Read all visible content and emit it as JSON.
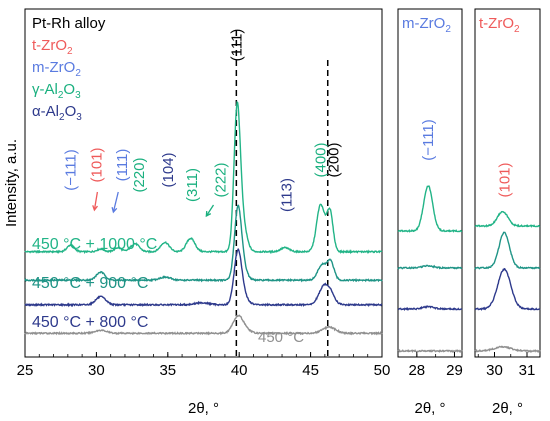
{
  "chart_data": {
    "type": "line",
    "title": "",
    "panels": [
      {
        "id": "main",
        "xlabel": "2θ, °",
        "ylabel": "Intensity, a.u.",
        "xlim": [
          25,
          50
        ],
        "xticks": [
          25,
          30,
          35,
          40,
          45,
          50
        ],
        "xtick_labels": [
          "25",
          "30",
          "35",
          "40",
          "45",
          "50"
        ],
        "legend": [
          {
            "label": "Pt-Rh alloy",
            "color": "#000000",
            "sub": ""
          },
          {
            "label": "t-ZrO",
            "color": "#ef5a5a",
            "sub": "2"
          },
          {
            "label": "m-ZrO",
            "color": "#5a7be0",
            "sub": "2"
          },
          {
            "label": "γ-Al",
            "color": "#1ab07f",
            "sub": "2",
            "tail": "O",
            "tailsub": "3"
          },
          {
            "label": "α-Al",
            "color": "#2e3a8c",
            "sub": "2",
            "tail": "O",
            "tailsub": "3"
          }
        ],
        "series": [
          {
            "name": "450 °C + 1000 °C",
            "color": "#22b487",
            "label": "450 °C + 1000 °C",
            "baseline": 0.78,
            "peaks": [
              [
                28.2,
                0.05,
                0.25
              ],
              [
                30.3,
                0.02,
                0.25
              ],
              [
                31.5,
                0.03,
                0.25
              ],
              [
                32.7,
                0.06,
                0.3
              ],
              [
                34.8,
                0.07,
                0.3
              ],
              [
                36.6,
                0.1,
                0.3
              ],
              [
                39.85,
                1.0,
                0.22
              ],
              [
                40.2,
                0.22,
                0.3
              ],
              [
                43.2,
                0.03,
                0.3
              ],
              [
                45.7,
                0.35,
                0.28
              ],
              [
                46.35,
                0.3,
                0.22
              ]
            ]
          },
          {
            "name": "450 °C + 900 °C",
            "color": "#1f9486",
            "label": "450 °C + 900 °C",
            "baseline": 0.56,
            "peaks": [
              [
                30.3,
                0.08,
                0.3
              ],
              [
                34.8,
                0.03,
                0.4
              ],
              [
                39.9,
                0.65,
                0.24
              ],
              [
                40.2,
                0.15,
                0.3
              ],
              [
                45.8,
                0.15,
                0.3
              ],
              [
                46.4,
                0.18,
                0.24
              ]
            ]
          },
          {
            "name": "450 °C + 800 °C",
            "color": "#2e3a8c",
            "label": "450 °C + 800 °C",
            "baseline": 0.37,
            "peaks": [
              [
                30.3,
                0.08,
                0.35
              ],
              [
                37.4,
                0.02,
                0.5
              ],
              [
                39.9,
                0.48,
                0.26
              ],
              [
                40.2,
                0.1,
                0.35
              ],
              [
                45.9,
                0.17,
                0.34
              ],
              [
                46.4,
                0.1,
                0.3
              ]
            ]
          },
          {
            "name": "450 °C",
            "color": "#909090",
            "label": "450 °C",
            "baseline": 0.15,
            "peaks": [
              [
                30.3,
                0.03,
                0.4
              ],
              [
                39.9,
                0.15,
                0.35
              ],
              [
                40.3,
                0.04,
                0.4
              ],
              [
                46.3,
                0.06,
                0.45
              ]
            ]
          }
        ],
        "reference_lines": [
          39.8,
          46.2
        ],
        "annotations": [
          {
            "text": "(−111)",
            "x": 28.2,
            "color": "#5a7be0"
          },
          {
            "text": "(101)",
            "x": 30.0,
            "color": "#ef5a5a"
          },
          {
            "text": "(111)",
            "x": 31.8,
            "color": "#5a7be0"
          },
          {
            "text": "(220)",
            "x": 33.0,
            "color": "#1ab07f"
          },
          {
            "text": "(104)",
            "x": 35.0,
            "color": "#2e3a8c"
          },
          {
            "text": "(311)",
            "x": 36.7,
            "color": "#1ab07f"
          },
          {
            "text": "(222)",
            "x": 38.7,
            "color": "#1ab07f"
          },
          {
            "text": "(111)",
            "x": 39.8,
            "color": "#000000"
          },
          {
            "text": "(113)",
            "x": 43.3,
            "color": "#2e3a8c"
          },
          {
            "text": "(400)",
            "x": 45.7,
            "color": "#1ab07f"
          },
          {
            "text": "(200)",
            "x": 46.6,
            "color": "#000000"
          }
        ]
      },
      {
        "id": "m-zro2",
        "title": "m-ZrO",
        "title_sub": "2",
        "title_color": "#5a7be0",
        "xlabel": "2θ, °",
        "xlim": [
          27.5,
          29.2
        ],
        "xticks": [
          28,
          29
        ],
        "xtick_labels": [
          "28",
          "29"
        ],
        "annotation": "(−111)",
        "annotation_color": "#5a7be0",
        "series": [
          {
            "name": "450 °C + 1000 °C",
            "peaks": [
              [
                28.3,
                0.2,
                0.12
              ]
            ]
          },
          {
            "name": "450 °C + 900 °C",
            "peaks": [
              [
                28.3,
                0.01,
                0.15
              ]
            ]
          },
          {
            "name": "450 °C + 800 °C",
            "peaks": [
              [
                28.3,
                0.01,
                0.15
              ]
            ]
          },
          {
            "name": "450 °C",
            "peaks": []
          }
        ]
      },
      {
        "id": "t-zro2",
        "title": "t-ZrO",
        "title_sub": "2",
        "title_color": "#ef5a5a",
        "xlabel": "2θ, °",
        "xlim": [
          29.4,
          31.4
        ],
        "xticks": [
          30,
          31
        ],
        "xtick_labels": [
          "30",
          "31"
        ],
        "annotation": "(101)",
        "annotation_color": "#ef5a5a",
        "series": [
          {
            "name": "450 °C + 1000 °C",
            "peaks": [
              [
                30.25,
                0.07,
                0.16
              ]
            ]
          },
          {
            "name": "450 °C + 900 °C",
            "peaks": [
              [
                30.3,
                0.17,
                0.16
              ]
            ]
          },
          {
            "name": "450 °C + 800 °C",
            "peaks": [
              [
                30.3,
                0.19,
                0.2
              ]
            ]
          },
          {
            "name": "450 °C",
            "peaks": [
              [
                30.25,
                0.02,
                0.25
              ]
            ]
          }
        ]
      }
    ]
  }
}
